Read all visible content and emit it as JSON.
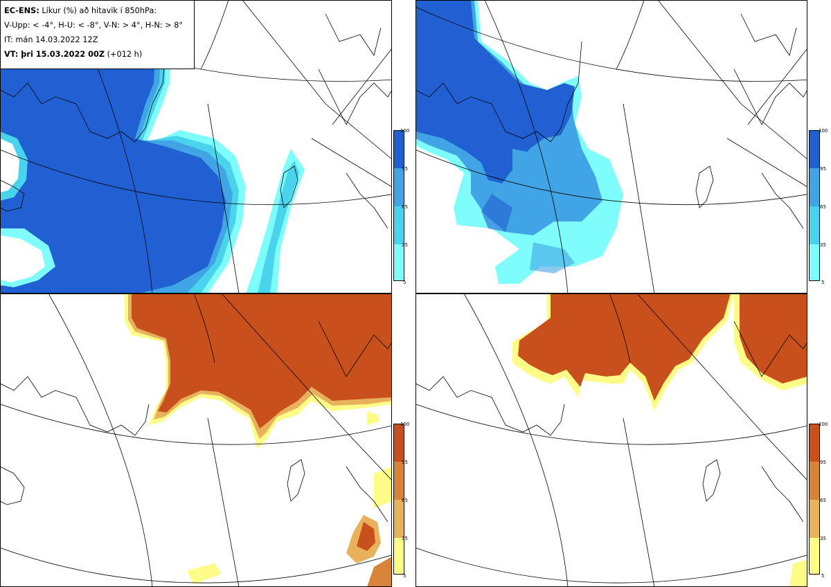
{
  "legend": {
    "line1_bold": "EC-ENS:",
    "line1_rest": " Líkur (%) að hitavik í 850hPa:",
    "line2": "V-Upp: < -4°, H-U: < -8°, V-N: > 4°, H-N: > 8°",
    "line3": "IT: mán 14.03.2022 12Z",
    "line4_bold": "VT: þri 15.03.2022 00Z",
    "line4_rest": " (+012 h)"
  },
  "colorbar_ticks": [
    "100",
    "95",
    "65",
    "35",
    "5"
  ],
  "colors": {
    "blue_scale": [
      "#7ffcfc",
      "#4ad3ec",
      "#41a4e4",
      "#2a7ad9",
      "#2060d2"
    ],
    "orange_scale": [
      "#fdfc88",
      "#f5e36a",
      "#e8b25c",
      "#d7843a",
      "#c8501c"
    ],
    "coast": "#000000",
    "grid": "#000000"
  },
  "panels": [
    {
      "position": "top-left",
      "variable": "V-Upp"
    },
    {
      "position": "top-right",
      "variable": "H-U"
    },
    {
      "position": "bottom-left",
      "variable": "V-N"
    },
    {
      "position": "bottom-right",
      "variable": "H-N"
    }
  ]
}
